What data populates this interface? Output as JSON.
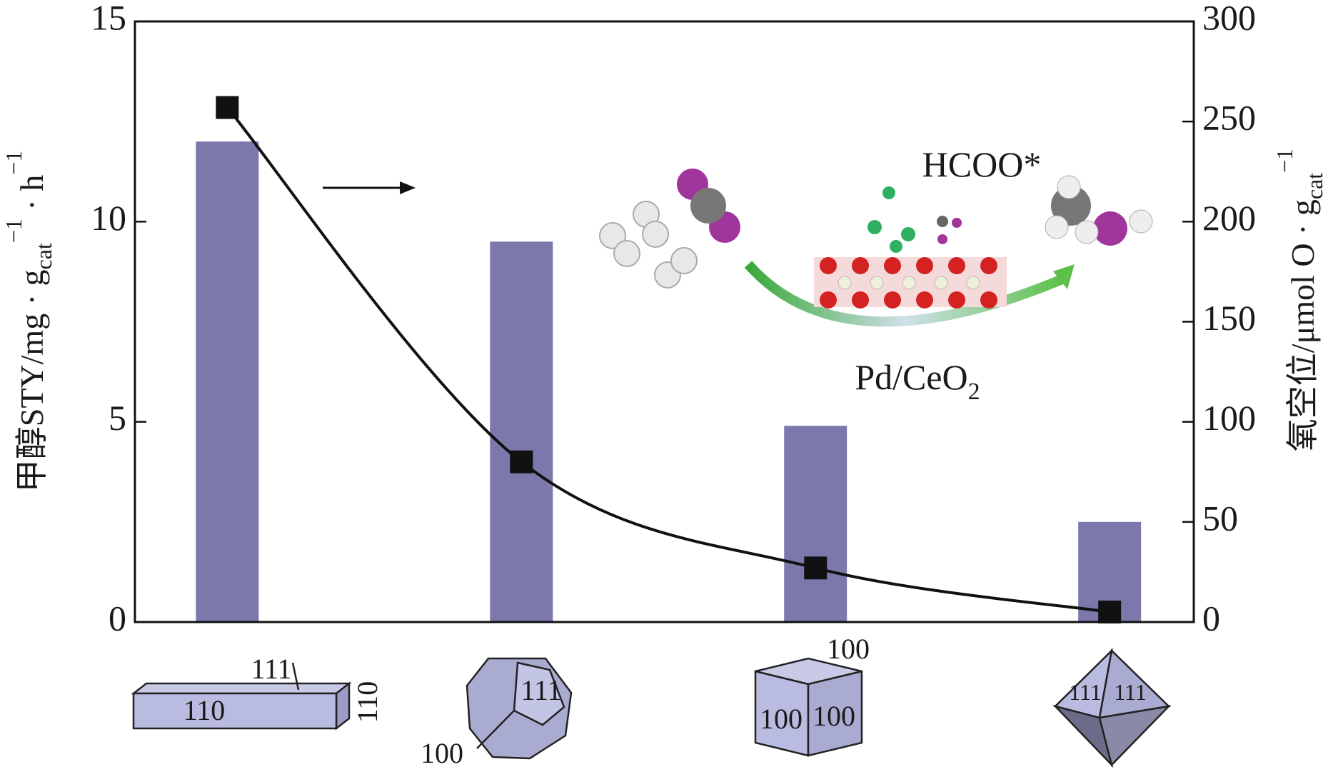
{
  "chart_data": {
    "type": "bar",
    "categories": [
      null,
      null,
      null,
      null
    ],
    "series": [
      {
        "name": null,
        "color": "#7b78ac",
        "values": [
          12,
          9.5,
          4.9,
          2.5
        ]
      },
      {
        "name": null,
        "color": "#111111",
        "values": [
          257,
          80,
          27,
          5
        ],
        "axis": "y2",
        "type": "line"
      }
    ],
    "ylim": [
      0,
      15
    ],
    "yticks": [
      0,
      5,
      10,
      15
    ],
    "y2lim": [
      0,
      300
    ],
    "y2ticks": [
      0,
      50,
      100,
      150,
      200,
      250,
      300
    ],
    "ylabel": [
      "甲醇STY/mg · g",
      "cat",
      "−1",
      " · h",
      "−1"
    ],
    "y2label": [
      "氧空位/μmol O · g",
      "cat",
      "−1"
    ],
    "inset": {
      "species": "HCOO*",
      "catalyst": [
        "Pd/CeO",
        "2"
      ]
    },
    "annotations": [
      "111",
      "110",
      "110",
      "111",
      "100",
      "100",
      "100",
      "100",
      "111",
      "111"
    ]
  }
}
